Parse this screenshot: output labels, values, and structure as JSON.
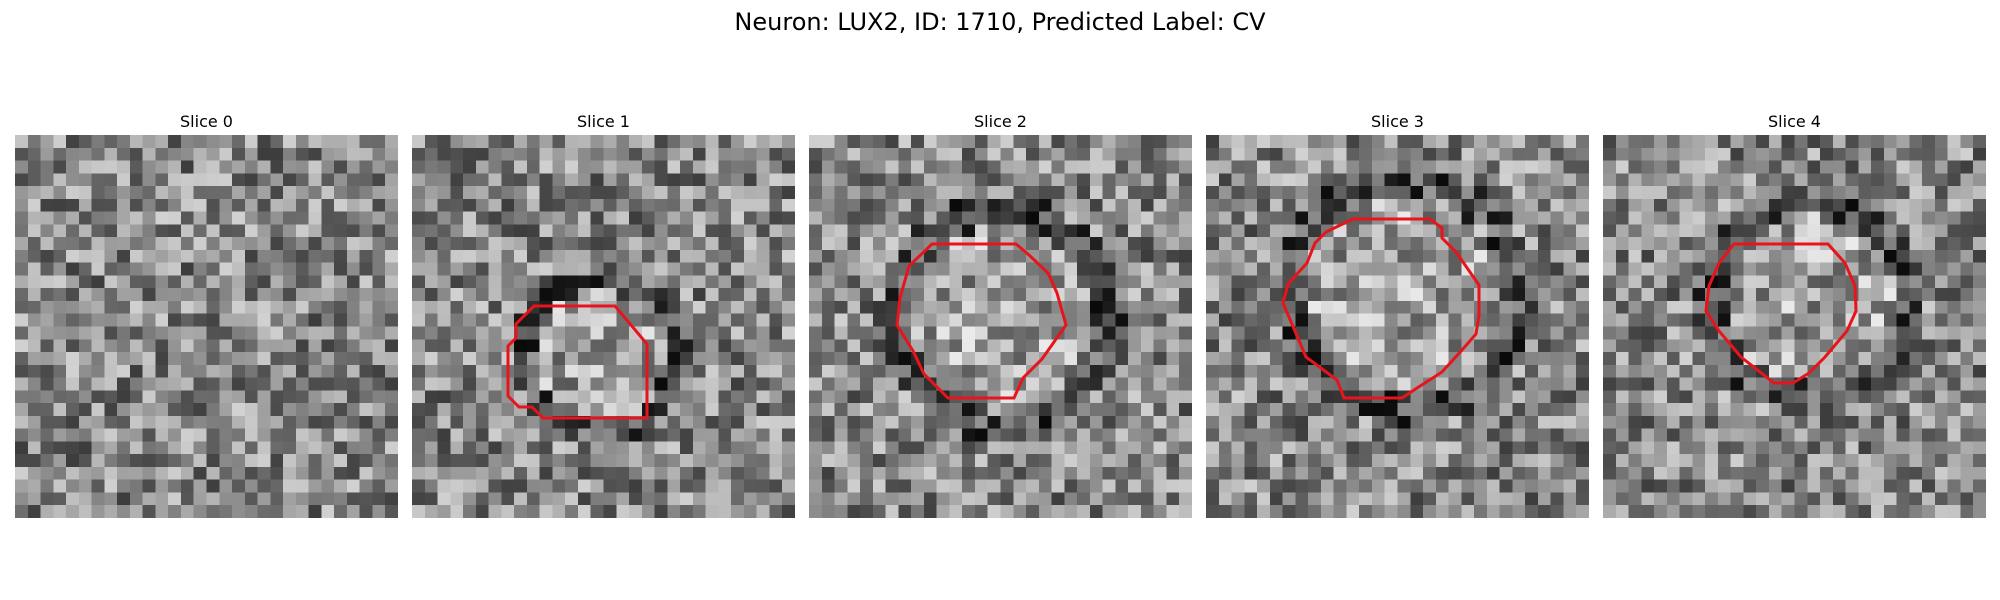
{
  "figure": {
    "title": "Neuron: LUX2, ID: 1710, Predicted Label: CV"
  },
  "colors": {
    "contour": "#e8141c",
    "background": "#ffffff"
  },
  "panels": [
    {
      "title": "Slice 0",
      "has_contour": false
    },
    {
      "title": "Slice 1",
      "has_contour": true
    },
    {
      "title": "Slice 2",
      "has_contour": true
    },
    {
      "title": "Slice 3",
      "has_contour": true
    },
    {
      "title": "Slice 4",
      "has_contour": true
    }
  ]
}
